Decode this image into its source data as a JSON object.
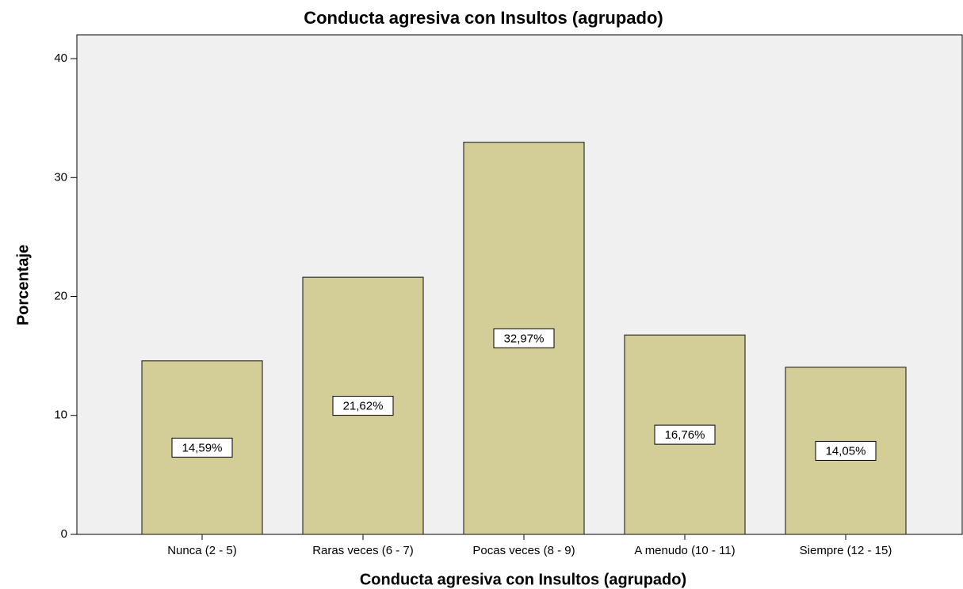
{
  "chart_data": {
    "type": "bar",
    "title": "Conducta agresiva con Insultos (agrupado)",
    "x_label": "Conducta agresiva con Insultos (agrupado)",
    "y_label": "Porcentaje",
    "categories": [
      "Nunca (2 - 5)",
      "Raras veces (6 - 7)",
      "Pocas veces (8 - 9)",
      "A menudo (10 - 11)",
      "Siempre (12 - 15)"
    ],
    "values": [
      14.59,
      21.62,
      32.97,
      16.76,
      14.05
    ],
    "value_labels": [
      "14,59%",
      "21,62%",
      "32,97%",
      "16,76%",
      "14,05%"
    ],
    "color": "#d3ce97",
    "ylim": [
      0,
      42
    ],
    "yticks": [
      0,
      10,
      20,
      30,
      40
    ],
    "grid": false
  }
}
